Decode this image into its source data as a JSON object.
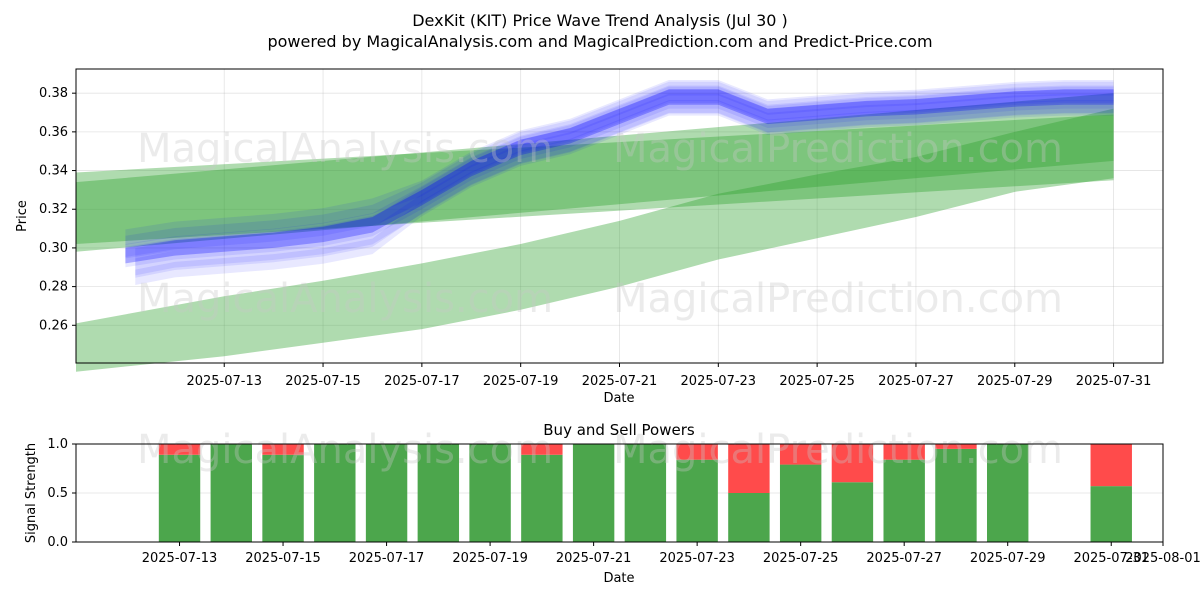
{
  "header": {
    "title": "DexKit (KIT) Price Wave Trend Analysis (Jul 30 )",
    "subtitle": "powered by MagicalAnalysis.com and MagicalPrediction.com and Predict-Price.com"
  },
  "watermarks": {
    "left": "MagicalAnalysis.com",
    "right": "MagicalPrediction.com"
  },
  "colors": {
    "actual_band": "#0000ff",
    "prediction_band": "#2ca02c",
    "buy": "#4ca64c",
    "sell": "#ff4b4b"
  },
  "chart_data": [
    {
      "type": "area",
      "title": "",
      "xlabel": "Date",
      "ylabel": "Price",
      "xlim": [
        "2025-07-10",
        "2025-08-01"
      ],
      "ylim": [
        0.2405,
        0.3925
      ],
      "grid": true,
      "x_ticks": [
        "2025-07-13",
        "2025-07-15",
        "2025-07-17",
        "2025-07-19",
        "2025-07-21",
        "2025-07-23",
        "2025-07-25",
        "2025-07-27",
        "2025-07-29",
        "2025-07-31"
      ],
      "y_ticks": [
        0.26,
        0.28,
        0.3,
        0.32,
        0.34,
        0.36,
        0.38
      ],
      "series": [
        {
          "kind": "blue-wave",
          "x": [
            "2025-07-11",
            "2025-07-12",
            "2025-07-13",
            "2025-07-14",
            "2025-07-15",
            "2025-07-16",
            "2025-07-17",
            "2025-07-18",
            "2025-07-19",
            "2025-07-20",
            "2025-07-21",
            "2025-07-22",
            "2025-07-23",
            "2025-07-24",
            "2025-07-25",
            "2025-07-26",
            "2025-07-27",
            "2025-07-28",
            "2025-07-29",
            "2025-07-30",
            "2025-07-31"
          ],
          "values": [
            0.296,
            0.3,
            0.302,
            0.304,
            0.307,
            0.312,
            0.326,
            0.341,
            0.352,
            0.358,
            0.368,
            0.378,
            0.378,
            0.368,
            0.37,
            0.372,
            0.373,
            0.375,
            0.377,
            0.378,
            0.378
          ]
        },
        {
          "kind": "green-band",
          "x": [
            "2025-07-10",
            "2025-07-31"
          ],
          "upper": [
            0.339,
            0.369
          ],
          "lower": [
            0.298,
            0.345
          ]
        },
        {
          "kind": "green-band",
          "x": [
            "2025-07-10",
            "2025-07-31"
          ],
          "upper": [
            0.334,
            0.38
          ],
          "lower": [
            0.302,
            0.335
          ]
        },
        {
          "kind": "green-band",
          "x": [
            "2025-07-10",
            "2025-07-13",
            "2025-07-15",
            "2025-07-17",
            "2025-07-19",
            "2025-07-21",
            "2025-07-23",
            "2025-07-25",
            "2025-07-27",
            "2025-07-29",
            "2025-07-31"
          ],
          "upper": [
            0.261,
            0.275,
            0.283,
            0.292,
            0.302,
            0.314,
            0.328,
            0.338,
            0.347,
            0.36,
            0.372
          ],
          "lower": [
            0.236,
            0.244,
            0.251,
            0.258,
            0.268,
            0.28,
            0.294,
            0.305,
            0.316,
            0.329,
            0.336
          ]
        }
      ]
    },
    {
      "type": "bar",
      "title": "Buy and Sell Powers",
      "xlabel": "Date",
      "ylabel": "Signal Strength",
      "xlim": [
        "2025-07-11",
        "2025-08-01"
      ],
      "ylim": [
        0,
        1
      ],
      "x_ticks": [
        "2025-07-13",
        "2025-07-15",
        "2025-07-17",
        "2025-07-19",
        "2025-07-21",
        "2025-07-23",
        "2025-07-25",
        "2025-07-27",
        "2025-07-29",
        "2025-07-31",
        "2025-08-01"
      ],
      "y_ticks": [
        "0.0",
        "0.5",
        "1.0"
      ],
      "categories": [
        "2025-07-13",
        "2025-07-14",
        "2025-07-15",
        "2025-07-16",
        "2025-07-17",
        "2025-07-18",
        "2025-07-19",
        "2025-07-20",
        "2025-07-21",
        "2025-07-22",
        "2025-07-23",
        "2025-07-24",
        "2025-07-25",
        "2025-07-26",
        "2025-07-27",
        "2025-07-28",
        "2025-07-29",
        "2025-07-31"
      ],
      "series": [
        {
          "kind": "buy",
          "values": [
            0.89,
            1.0,
            0.89,
            1.0,
            1.0,
            1.0,
            1.0,
            0.89,
            1.0,
            1.0,
            0.84,
            0.5,
            0.79,
            0.61,
            0.84,
            0.95,
            1.0,
            0.57
          ]
        },
        {
          "kind": "sell",
          "values": [
            0.11,
            0.0,
            0.11,
            0.0,
            0.0,
            0.0,
            0.0,
            0.11,
            0.0,
            0.0,
            0.16,
            0.5,
            0.21,
            0.39,
            0.16,
            0.05,
            0.0,
            0.43
          ]
        }
      ]
    }
  ]
}
